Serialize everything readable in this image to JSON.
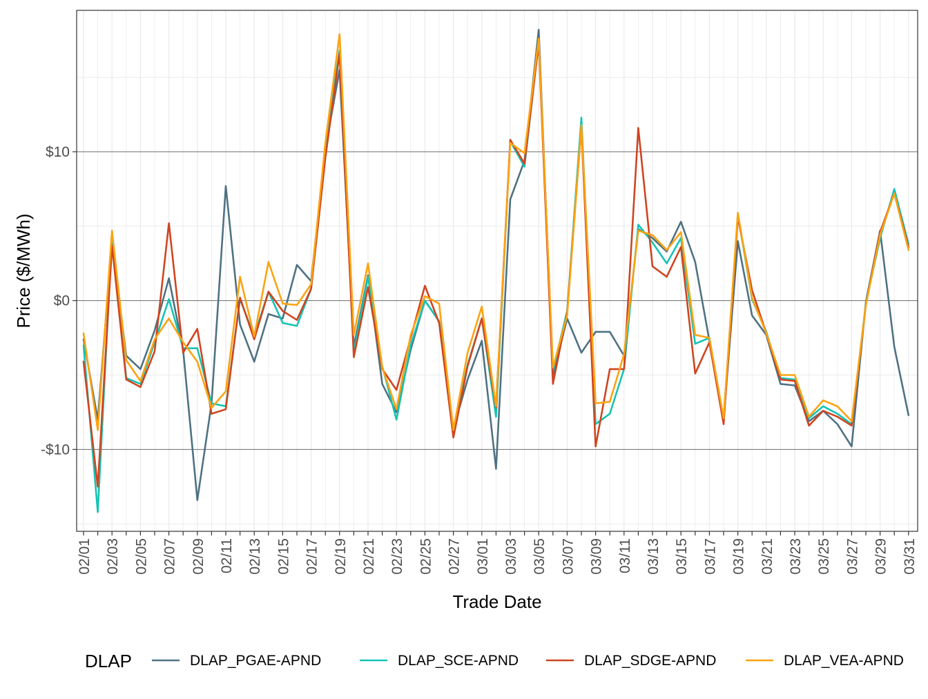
{
  "chart_data": {
    "type": "line",
    "xlabel": "Trade Date",
    "ylabel": "Price ($/MWh)",
    "ylim": [
      -15.5,
      19.5
    ],
    "y_ticks": [
      {
        "value": 10,
        "label": "$10"
      },
      {
        "value": 0,
        "label": "$0"
      },
      {
        "value": -10,
        "label": "-$10"
      }
    ],
    "x_tick_labels": [
      "02/01",
      "02/03",
      "02/05",
      "02/07",
      "02/09",
      "02/11",
      "02/13",
      "02/15",
      "02/17",
      "02/19",
      "02/21",
      "02/23",
      "02/25",
      "02/27",
      "03/01",
      "03/03",
      "03/05",
      "03/07",
      "03/09",
      "03/11",
      "03/13",
      "03/15",
      "03/17",
      "03/19",
      "03/21",
      "03/23",
      "03/25",
      "03/27",
      "03/29",
      "03/31"
    ],
    "x": [
      "02/01",
      "02/02",
      "02/03",
      "02/04",
      "02/05",
      "02/06",
      "02/07",
      "02/08",
      "02/09",
      "02/10",
      "02/11",
      "02/12",
      "02/13",
      "02/14",
      "02/15",
      "02/16",
      "02/17",
      "02/18",
      "02/19",
      "02/20",
      "02/21",
      "02/22",
      "02/23",
      "02/24",
      "02/25",
      "02/26",
      "02/27",
      "02/28",
      "03/01",
      "03/02",
      "03/03",
      "03/04",
      "03/05",
      "03/06",
      "03/07",
      "03/08",
      "03/09",
      "03/10",
      "03/11",
      "03/12",
      "03/13",
      "03/14",
      "03/15",
      "03/16",
      "03/17",
      "03/18",
      "03/19",
      "03/20",
      "03/21",
      "03/22",
      "03/23",
      "03/24",
      "03/25",
      "03/26",
      "03/27",
      "03/28",
      "03/29",
      "03/30",
      "03/31"
    ],
    "legend_title": "DLAP",
    "legend_position": "bottom",
    "grid": true,
    "series": [
      {
        "name": "DLAP_PGAE-APND",
        "color": "#4e7282",
        "values": [
          -2.6,
          -8.0,
          4.0,
          -3.7,
          -4.6,
          -2.0,
          1.5,
          -3.3,
          -13.4,
          -6.9,
          7.7,
          -1.6,
          -4.1,
          -0.9,
          -1.2,
          2.4,
          1.3,
          10.2,
          15.5,
          -3.1,
          1.7,
          -5.6,
          -7.5,
          -3.3,
          0.0,
          -1.4,
          -8.6,
          -5.3,
          -2.7,
          -11.3,
          6.8,
          9.4,
          18.2,
          -5.0,
          -1.2,
          -3.5,
          -2.1,
          -2.1,
          -3.7,
          4.8,
          4.2,
          3.3,
          5.3,
          2.6,
          -2.7,
          -8.0,
          4.0,
          -1.0,
          -2.3,
          -5.6,
          -5.7,
          -8.1,
          -7.4,
          -8.3,
          -9.8,
          -0.1,
          4.7,
          -3.1,
          -7.7
        ]
      },
      {
        "name": "DLAP_SCE-APND",
        "color": "#15c3b4",
        "values": [
          -3.0,
          -14.2,
          4.2,
          -5.2,
          -5.6,
          -2.8,
          0.1,
          -3.2,
          -3.2,
          -6.9,
          -7.1,
          0.1,
          -2.4,
          0.6,
          -1.5,
          -1.7,
          0.8,
          10.4,
          16.8,
          -3.5,
          1.6,
          -4.4,
          -8.0,
          -3.0,
          0.0,
          -1.4,
          -8.9,
          -4.3,
          -1.2,
          -7.8,
          10.7,
          9.0,
          17.4,
          -4.7,
          -0.7,
          12.3,
          -8.3,
          -7.6,
          -4.6,
          5.1,
          3.9,
          2.5,
          4.2,
          -2.9,
          -2.5,
          -8.0,
          5.8,
          0.1,
          -2.1,
          -5.2,
          -5.3,
          -7.9,
          -7.1,
          -7.6,
          -8.3,
          -0.2,
          4.2,
          7.5,
          3.8
        ]
      },
      {
        "name": "DLAP_SDGE-APND",
        "color": "#cf4520",
        "values": [
          -4.1,
          -12.5,
          3.7,
          -5.3,
          -5.8,
          -3.4,
          5.2,
          -3.5,
          -1.9,
          -7.6,
          -7.3,
          0.2,
          -2.6,
          0.6,
          -0.7,
          -1.3,
          0.8,
          9.6,
          16.6,
          -3.8,
          0.9,
          -4.6,
          -6.0,
          -2.5,
          1.0,
          -1.5,
          -9.2,
          -4.4,
          -1.2,
          -7.2,
          10.8,
          9.2,
          17.3,
          -5.6,
          -0.8,
          11.7,
          -9.8,
          -4.6,
          -4.6,
          11.6,
          2.3,
          1.6,
          3.6,
          -4.9,
          -2.8,
          -8.3,
          5.6,
          0.7,
          -2.2,
          -5.3,
          -5.4,
          -8.4,
          -7.4,
          -7.8,
          -8.4,
          -0.3,
          4.6,
          7.2,
          3.6
        ]
      },
      {
        "name": "DLAP_VEA-APND",
        "color": "#fca311",
        "values": [
          -2.2,
          -8.7,
          4.7,
          -4.0,
          -5.4,
          -2.6,
          -1.2,
          -2.8,
          -4.1,
          -7.2,
          -6.1,
          1.6,
          -2.4,
          2.6,
          -0.2,
          -0.3,
          1.1,
          10.6,
          17.9,
          -2.3,
          2.5,
          -4.5,
          -7.3,
          -2.3,
          0.3,
          -0.2,
          -8.7,
          -3.5,
          -0.4,
          -7.1,
          10.6,
          9.9,
          17.6,
          -4.5,
          -1.0,
          11.8,
          -6.9,
          -6.8,
          -3.6,
          4.7,
          4.4,
          3.4,
          4.6,
          -2.3,
          -2.5,
          -7.9,
          5.9,
          0.2,
          -2.2,
          -5.0,
          -5.0,
          -7.8,
          -6.7,
          -7.1,
          -8.1,
          -0.3,
          4.4,
          7.2,
          3.4
        ]
      }
    ]
  }
}
